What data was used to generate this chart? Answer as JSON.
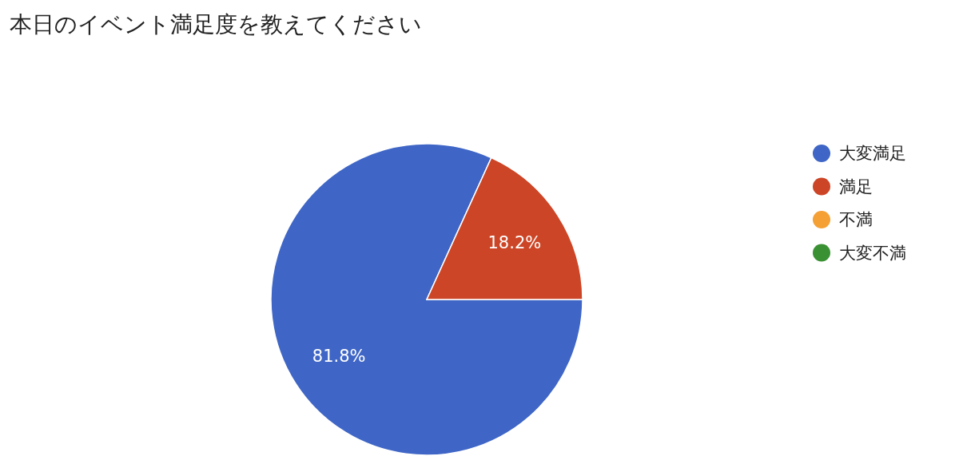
{
  "chart_data": {
    "type": "pie",
    "title": "本日のイベント満足度を教えてください",
    "categories": [
      "大変満足",
      "満足",
      "不満",
      "大変不満"
    ],
    "values": [
      81.8,
      18.2,
      0,
      0
    ],
    "colors": [
      "#3f66c6",
      "#cc4526",
      "#f4a034",
      "#3a9134"
    ],
    "value_labels": [
      "81.8%",
      "18.2%",
      null,
      null
    ],
    "legend": "right"
  }
}
